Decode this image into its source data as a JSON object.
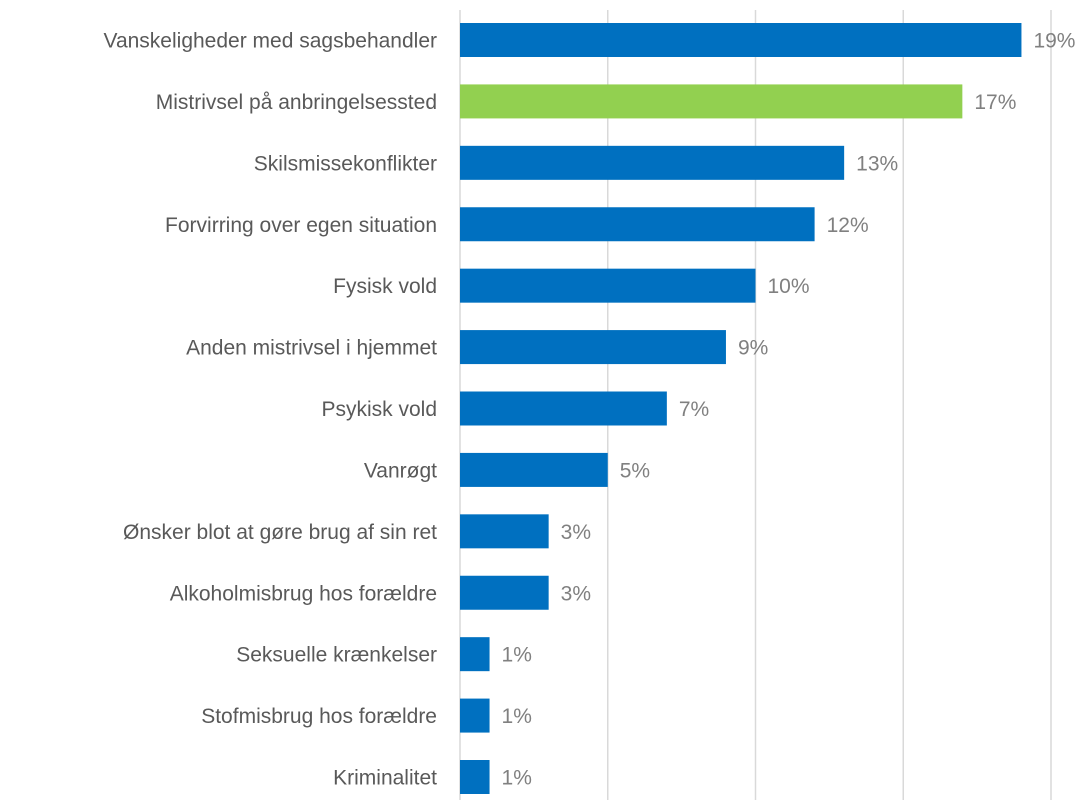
{
  "chart_data": {
    "type": "barh",
    "categories": [
      "Vanskeligheder med sagsbehandler",
      "Mistrivsel på anbringelsessted",
      "Skilsmissekonflikter",
      "Forvirring over egen situation",
      "Fysisk vold",
      "Anden mistrivsel i hjemmet",
      "Psykisk vold",
      "Vanrøgt",
      "Ønsker blot at gøre brug af sin ret",
      "Alkoholmisbrug hos forældre",
      "Seksuelle krænkelser",
      "Stofmisbrug hos forældre",
      "Kriminalitet"
    ],
    "values": [
      19,
      17,
      13,
      12,
      10,
      9,
      7,
      5,
      3,
      3,
      1,
      1,
      1
    ],
    "value_labels": [
      "19%",
      "17%",
      "13%",
      "12%",
      "10%",
      "9%",
      "7%",
      "5%",
      "3%",
      "3%",
      "1%",
      "1%",
      "1%"
    ],
    "colors": [
      "#0070c0",
      "#92d050",
      "#0070c0",
      "#0070c0",
      "#0070c0",
      "#0070c0",
      "#0070c0",
      "#0070c0",
      "#0070c0",
      "#0070c0",
      "#0070c0",
      "#0070c0",
      "#0070c0"
    ],
    "xlim": [
      0,
      20
    ],
    "xticks": [
      0,
      5,
      10,
      15,
      20
    ],
    "grid": true
  }
}
